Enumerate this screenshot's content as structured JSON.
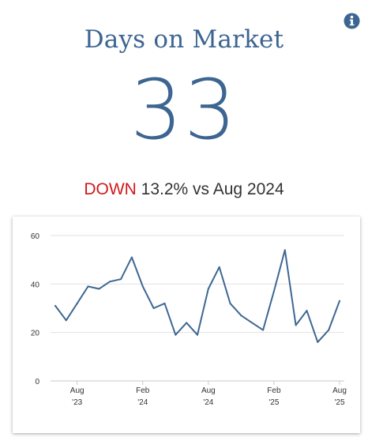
{
  "title": "Days on Market",
  "value": "33",
  "change": {
    "direction": "DOWN",
    "text": "13.2% vs Aug 2024",
    "direction_color": "#d0191c"
  },
  "info_icon": "info-circle-icon",
  "colors": {
    "accent": "#3c6591",
    "line": "#3e6792",
    "grid": "#e2e2e2",
    "down": "#d0191c"
  },
  "chart_data": {
    "type": "line",
    "ylim": [
      0,
      60
    ],
    "yticks": [
      0,
      20,
      40,
      60
    ],
    "grid": true,
    "xticks": [
      {
        "month": "Aug",
        "year": "'23",
        "date": "2023-08"
      },
      {
        "month": "Feb",
        "year": "'24",
        "date": "2024-02"
      },
      {
        "month": "Aug",
        "year": "'24",
        "date": "2024-08"
      },
      {
        "month": "Feb",
        "year": "'25",
        "date": "2025-02"
      },
      {
        "month": "Aug",
        "year": "'25",
        "date": "2025-08"
      }
    ],
    "x": [
      "2023-06",
      "2023-07",
      "2023-08",
      "2023-09",
      "2023-10",
      "2023-11",
      "2023-12",
      "2024-01",
      "2024-02",
      "2024-03",
      "2024-04",
      "2024-05",
      "2024-06",
      "2024-07",
      "2024-08",
      "2024-09",
      "2024-10",
      "2024-11",
      "2024-12",
      "2025-01",
      "2025-02",
      "2025-03",
      "2025-04",
      "2025-05",
      "2025-06",
      "2025-07",
      "2025-08"
    ],
    "values": [
      31,
      25,
      32,
      39,
      38,
      41,
      42,
      51,
      39,
      30,
      32,
      19,
      24,
      19,
      38,
      47,
      32,
      27,
      24,
      21,
      37,
      54,
      23,
      29,
      16,
      21,
      33
    ]
  }
}
